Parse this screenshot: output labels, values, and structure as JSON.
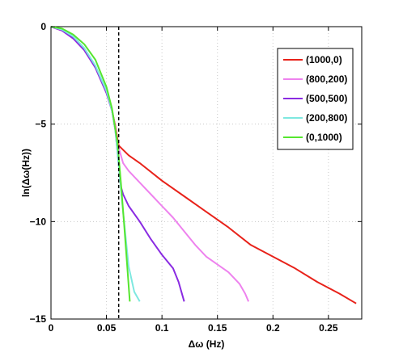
{
  "chart_data": {
    "type": "line",
    "xlabel": "Δω (Hz)",
    "ylabel": "ln(Δω(Hz))",
    "xlim": [
      0,
      0.28
    ],
    "ylim": [
      -15,
      0
    ],
    "xticks": [
      0,
      0.05,
      0.1,
      0.15,
      0.2,
      0.25
    ],
    "xtick_labels": [
      "0",
      "0.05",
      "0.1",
      "0.15",
      "0.2",
      "0.25"
    ],
    "yticks": [
      0,
      -5,
      -10,
      -15
    ],
    "ytick_labels": [
      "0",
      "−5",
      "−10",
      "−15"
    ],
    "grid": true,
    "legend_position": "top-right",
    "vline": {
      "x": 0.061,
      "style": "dashed",
      "color": "#000000"
    },
    "series": [
      {
        "name": "(1000,0)",
        "color": "#e8221a",
        "x": [
          0,
          0.01,
          0.02,
          0.03,
          0.04,
          0.05,
          0.055,
          0.058,
          0.06,
          0.061,
          0.07,
          0.08,
          0.1,
          0.12,
          0.14,
          0.16,
          0.18,
          0.2,
          0.22,
          0.24,
          0.26,
          0.275
        ],
        "y": [
          0,
          -0.2,
          -0.6,
          -1.2,
          -2.1,
          -3.4,
          -4.3,
          -5.1,
          -5.8,
          -6.1,
          -6.6,
          -7.0,
          -7.9,
          -8.7,
          -9.5,
          -10.3,
          -11.2,
          -11.8,
          -12.4,
          -13.1,
          -13.7,
          -14.2
        ]
      },
      {
        "name": "(800,200)",
        "color": "#ee82ee",
        "x": [
          0,
          0.01,
          0.02,
          0.03,
          0.04,
          0.05,
          0.055,
          0.058,
          0.06,
          0.065,
          0.07,
          0.08,
          0.09,
          0.1,
          0.11,
          0.12,
          0.13,
          0.14,
          0.15,
          0.16,
          0.17,
          0.175,
          0.178
        ],
        "y": [
          0,
          -0.2,
          -0.6,
          -1.2,
          -2.1,
          -3.4,
          -4.3,
          -5.2,
          -6.0,
          -7.0,
          -7.4,
          -8.0,
          -8.6,
          -9.2,
          -9.8,
          -10.5,
          -11.2,
          -11.8,
          -12.2,
          -12.6,
          -13.2,
          -13.7,
          -14.1
        ]
      },
      {
        "name": "(500,500)",
        "color": "#8a2be2",
        "x": [
          0,
          0.01,
          0.02,
          0.03,
          0.04,
          0.05,
          0.055,
          0.058,
          0.06,
          0.063,
          0.065,
          0.07,
          0.08,
          0.09,
          0.1,
          0.11,
          0.115,
          0.12
        ],
        "y": [
          0,
          -0.2,
          -0.6,
          -1.2,
          -2.1,
          -3.4,
          -4.3,
          -5.3,
          -6.5,
          -8.2,
          -8.6,
          -9.2,
          -10.0,
          -10.9,
          -11.7,
          -12.4,
          -13.1,
          -14.1
        ]
      },
      {
        "name": "(200,800)",
        "color": "#7ee8e0",
        "x": [
          0,
          0.01,
          0.02,
          0.03,
          0.04,
          0.05,
          0.055,
          0.058,
          0.06,
          0.065,
          0.07,
          0.075,
          0.08
        ],
        "y": [
          0,
          -0.15,
          -0.5,
          -1.1,
          -2.0,
          -3.3,
          -4.3,
          -5.3,
          -6.5,
          -9.5,
          -12.3,
          -13.6,
          -14.1
        ]
      },
      {
        "name": "(0,1000)",
        "color": "#55e62e",
        "x": [
          0,
          0.01,
          0.02,
          0.03,
          0.04,
          0.05,
          0.055,
          0.06,
          0.063,
          0.066,
          0.069,
          0.071
        ],
        "y": [
          0,
          -0.1,
          -0.4,
          -0.9,
          -1.7,
          -3.1,
          -4.2,
          -6.0,
          -8.0,
          -10.2,
          -12.5,
          -14.1
        ]
      }
    ]
  }
}
